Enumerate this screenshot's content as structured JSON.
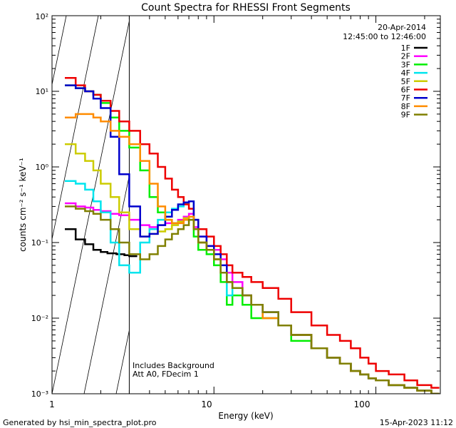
{
  "chart_data": {
    "type": "line",
    "title": "Count Spectra for RHESSI Front Segments",
    "xlabel": "Energy (keV)",
    "ylabel": "counts cm⁻² s⁻¹ keV⁻¹",
    "xscale": "log",
    "yscale": "log",
    "xlim": [
      1,
      250
    ],
    "ylim": [
      0.001,
      100
    ],
    "x_ticks": [
      "1",
      "10",
      "100"
    ],
    "y_ticks": [
      "10⁻³",
      "10⁻²",
      "10⁻¹",
      "10⁰",
      "10¹",
      "10²"
    ],
    "date": "20-Apr-2014",
    "time_range": "12:45:00 to 12:46:00",
    "annotation_lines": [
      "Includes Background",
      "Att A0, FDecim 1"
    ],
    "footer_left": "Generated by hsi_min_spectra_plot.pro",
    "footer_right": "15-Apr-2023 11:12",
    "excluded_region_keV": [
      1,
      3
    ],
    "legend_position": "top-right",
    "series": [
      {
        "name": "1F",
        "color": "#000000",
        "x": [
          1.2,
          1.4,
          1.6,
          1.8,
          2.0,
          2.2,
          2.5,
          2.8,
          3.0
        ],
        "values": [
          0.15,
          0.11,
          0.095,
          0.08,
          0.075,
          0.072,
          0.07,
          0.068,
          0.066
        ]
      },
      {
        "name": "2F",
        "color": "#ff00ff",
        "x": [
          1.2,
          1.4,
          1.6,
          1.8,
          2.0,
          2.3,
          2.6,
          3.0,
          3.5,
          4.0,
          4.5,
          5.0,
          5.5,
          6.0,
          6.5,
          7.0,
          7.5,
          8,
          9,
          10,
          11,
          12,
          13,
          15,
          17,
          20,
          25,
          30,
          40,
          50,
          60,
          70,
          80,
          90,
          100,
          120,
          150,
          180,
          220
        ],
        "values": [
          0.33,
          0.3,
          0.29,
          0.27,
          0.26,
          0.24,
          0.23,
          0.2,
          0.17,
          0.16,
          0.17,
          0.18,
          0.18,
          0.2,
          0.22,
          0.24,
          0.16,
          0.12,
          0.09,
          0.08,
          0.06,
          0.04,
          0.03,
          0.02,
          0.015,
          0.012,
          0.008,
          0.006,
          0.004,
          0.003,
          0.0025,
          0.002,
          0.0018,
          0.0016,
          0.0015,
          0.0013,
          0.0012,
          0.0011,
          0.001
        ]
      },
      {
        "name": "3F",
        "color": "#00ee00",
        "x": [
          1.2,
          1.4,
          1.6,
          1.8,
          2.0,
          2.3,
          2.6,
          3.0,
          3.5,
          4.0,
          4.5,
          5.0,
          5.5,
          6.0,
          6.5,
          7.0,
          7.5,
          8,
          9,
          10,
          11,
          12,
          13,
          15,
          17,
          20,
          25,
          30,
          40,
          50,
          60,
          70,
          80,
          90,
          100,
          120,
          150,
          180,
          220
        ],
        "values": [
          12,
          11,
          10,
          9,
          7,
          4.5,
          3,
          1.8,
          0.9,
          0.4,
          0.25,
          0.2,
          0.18,
          0.19,
          0.2,
          0.2,
          0.12,
          0.08,
          0.07,
          0.05,
          0.03,
          0.015,
          0.02,
          0.015,
          0.01,
          0.012,
          0.008,
          0.005,
          0.004,
          0.003,
          0.0025,
          0.002,
          0.0018,
          0.0016,
          0.0015,
          0.0013,
          0.0012,
          0.0011,
          0.001
        ]
      },
      {
        "name": "4F",
        "color": "#00e5ee",
        "x": [
          1.2,
          1.4,
          1.6,
          1.8,
          2.0,
          2.3,
          2.6,
          3.0,
          3.5,
          4.0,
          4.5,
          5.0,
          5.5,
          6.0,
          6.5,
          7.0,
          7.5,
          8,
          9,
          10,
          11,
          12,
          13,
          15,
          17,
          20,
          25,
          30,
          40,
          50,
          60,
          70,
          80,
          90,
          100,
          120,
          150,
          180,
          220
        ],
        "values": [
          0.65,
          0.6,
          0.5,
          0.35,
          0.25,
          0.1,
          0.05,
          0.04,
          0.1,
          0.15,
          0.2,
          0.25,
          0.28,
          0.3,
          0.33,
          0.35,
          0.2,
          0.1,
          0.08,
          0.06,
          0.04,
          0.02,
          0.025,
          0.02,
          0.015,
          0.01,
          0.008,
          0.006,
          0.004,
          0.003,
          0.0025,
          0.002,
          0.0018,
          0.0016,
          0.0015,
          0.0013,
          0.0012,
          0.0011,
          0.001
        ]
      },
      {
        "name": "5F",
        "color": "#cccc00",
        "x": [
          1.2,
          1.4,
          1.6,
          1.8,
          2.0,
          2.3,
          2.6,
          3.0,
          3.5,
          4.0,
          4.5,
          5.0,
          5.5,
          6.0,
          6.5,
          7.0,
          7.5,
          8,
          9,
          10,
          11,
          12,
          13,
          15,
          17,
          20,
          25,
          30,
          40,
          50,
          60,
          70,
          80,
          90,
          100,
          120,
          150,
          180,
          220
        ],
        "values": [
          2,
          1.5,
          1.2,
          0.9,
          0.6,
          0.4,
          0.25,
          0.15,
          0.12,
          0.13,
          0.14,
          0.15,
          0.17,
          0.19,
          0.21,
          0.22,
          0.15,
          0.1,
          0.08,
          0.06,
          0.04,
          0.03,
          0.025,
          0.02,
          0.015,
          0.01,
          0.008,
          0.006,
          0.004,
          0.003,
          0.0025,
          0.002,
          0.0018,
          0.0016,
          0.0015,
          0.0013,
          0.0012,
          0.0011,
          0.001
        ]
      },
      {
        "name": "6F",
        "color": "#ee0000",
        "x": [
          1.2,
          1.4,
          1.6,
          1.8,
          2.0,
          2.3,
          2.6,
          3.0,
          3.5,
          4.0,
          4.5,
          5.0,
          5.5,
          6.0,
          6.5,
          7.0,
          7.5,
          8,
          9,
          10,
          11,
          12,
          13,
          15,
          17,
          20,
          25,
          30,
          40,
          50,
          60,
          70,
          80,
          90,
          100,
          120,
          150,
          180,
          220
        ],
        "values": [
          15,
          12,
          10,
          9,
          7.5,
          5.5,
          4,
          3,
          2,
          1.5,
          1,
          0.7,
          0.5,
          0.4,
          0.32,
          0.28,
          0.2,
          0.15,
          0.12,
          0.09,
          0.07,
          0.05,
          0.04,
          0.035,
          0.03,
          0.025,
          0.018,
          0.012,
          0.008,
          0.006,
          0.005,
          0.004,
          0.003,
          0.0025,
          0.002,
          0.0018,
          0.0015,
          0.0013,
          0.0012
        ]
      },
      {
        "name": "7F",
        "color": "#0000cc",
        "x": [
          1.2,
          1.4,
          1.6,
          1.8,
          2.0,
          2.3,
          2.6,
          3.0,
          3.5,
          4.0,
          4.5,
          5.0,
          5.5,
          6.0,
          6.5,
          7.0,
          7.5,
          8,
          9,
          10,
          11,
          12,
          13,
          15,
          17,
          20,
          25,
          30,
          40,
          50,
          60,
          70,
          80,
          90,
          100,
          120,
          150,
          180,
          220
        ],
        "values": [
          12,
          11,
          10,
          8,
          6,
          2.5,
          0.8,
          0.3,
          0.12,
          0.13,
          0.17,
          0.22,
          0.27,
          0.32,
          0.34,
          0.35,
          0.2,
          0.12,
          0.09,
          0.07,
          0.05,
          0.03,
          0.025,
          0.02,
          0.015,
          0.012,
          0.008,
          0.006,
          0.004,
          0.003,
          0.0025,
          0.002,
          0.0018,
          0.0016,
          0.0015,
          0.0013,
          0.0012,
          0.0011,
          0.001
        ]
      },
      {
        "name": "8F",
        "color": "#ff8c00",
        "x": [
          1.2,
          1.4,
          1.6,
          1.8,
          2.0,
          2.3,
          2.6,
          3.0,
          3.5,
          4.0,
          4.5,
          5.0,
          5.5,
          6.0,
          6.5,
          7.0,
          7.5,
          8,
          9,
          10,
          11,
          12,
          13,
          15,
          17,
          20,
          25,
          30,
          40,
          50,
          60,
          70,
          80,
          90,
          100,
          120,
          150,
          180,
          220
        ],
        "values": [
          4.5,
          5,
          5,
          4.5,
          4,
          3,
          2.5,
          2,
          1.2,
          0.6,
          0.3,
          0.2,
          0.18,
          0.18,
          0.2,
          0.22,
          0.15,
          0.1,
          0.08,
          0.06,
          0.04,
          0.03,
          0.025,
          0.02,
          0.015,
          0.01,
          0.008,
          0.006,
          0.004,
          0.003,
          0.0025,
          0.002,
          0.0018,
          0.0016,
          0.0015,
          0.0013,
          0.0012,
          0.0011,
          0.001
        ]
      },
      {
        "name": "9F",
        "color": "#808000",
        "x": [
          1.2,
          1.4,
          1.6,
          1.8,
          2.0,
          2.3,
          2.6,
          3.0,
          3.5,
          4.0,
          4.5,
          5.0,
          5.5,
          6.0,
          6.5,
          7.0,
          7.5,
          8,
          9,
          10,
          11,
          12,
          13,
          15,
          17,
          20,
          25,
          30,
          40,
          50,
          60,
          70,
          80,
          90,
          100,
          120,
          150,
          180,
          220
        ],
        "values": [
          0.3,
          0.28,
          0.26,
          0.24,
          0.2,
          0.15,
          0.1,
          0.07,
          0.06,
          0.07,
          0.09,
          0.11,
          0.13,
          0.15,
          0.17,
          0.2,
          0.15,
          0.1,
          0.08,
          0.06,
          0.04,
          0.03,
          0.025,
          0.02,
          0.015,
          0.012,
          0.008,
          0.006,
          0.004,
          0.003,
          0.0025,
          0.002,
          0.0018,
          0.0016,
          0.0015,
          0.0013,
          0.0012,
          0.0011,
          0.001
        ]
      }
    ]
  }
}
